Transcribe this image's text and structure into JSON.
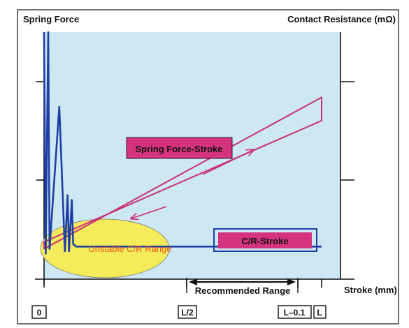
{
  "chart_data": {
    "type": "line",
    "title": "",
    "ylabel_left": "Spring Force",
    "ylabel_right": "Contact Resistance (mΩ)",
    "xlabel": "Stroke (mm)",
    "x_tick_labels": [
      "0",
      "L/2",
      "L–0.1",
      "L"
    ],
    "x_axis_fractions": [
      0,
      0.5,
      0.975,
      1
    ],
    "grid": false,
    "series": [
      {
        "label": "Spring Force-Stroke",
        "points": [
          [
            0.0,
            0.07
          ],
          [
            1.0,
            0.72
          ],
          [
            1.0,
            0.62
          ],
          [
            0.0,
            0.1
          ]
        ]
      },
      {
        "label": "C/R-Stroke",
        "points": [
          [
            0.0,
            1.0
          ],
          [
            0.006,
            0.05
          ],
          [
            0.015,
            1.0
          ],
          [
            0.02,
            0.07
          ],
          [
            0.055,
            0.68
          ],
          [
            0.075,
            0.06
          ],
          [
            0.085,
            0.3
          ],
          [
            0.09,
            0.06
          ],
          [
            0.1,
            0.28
          ],
          [
            0.105,
            0.09
          ],
          [
            0.115,
            0.08
          ],
          [
            1.0,
            0.08
          ]
        ]
      }
    ],
    "annotations": {
      "spring_force_label": "Spring Force-Stroke",
      "cr_label": "C/R-Stroke",
      "unstable_label": "Unstable C/R Range",
      "recommended_label": "Recommended Range"
    },
    "recommended_range": [
      0.5,
      0.93
    ]
  },
  "colors": {
    "plot_bg": "#cde8f2",
    "line": "#1e3fa6",
    "spring": "#cc2e78",
    "label_box": "#d6337e",
    "ellipse": "#f4ec5a",
    "unstable_text": "#f05a1e",
    "axis": "#111111"
  }
}
